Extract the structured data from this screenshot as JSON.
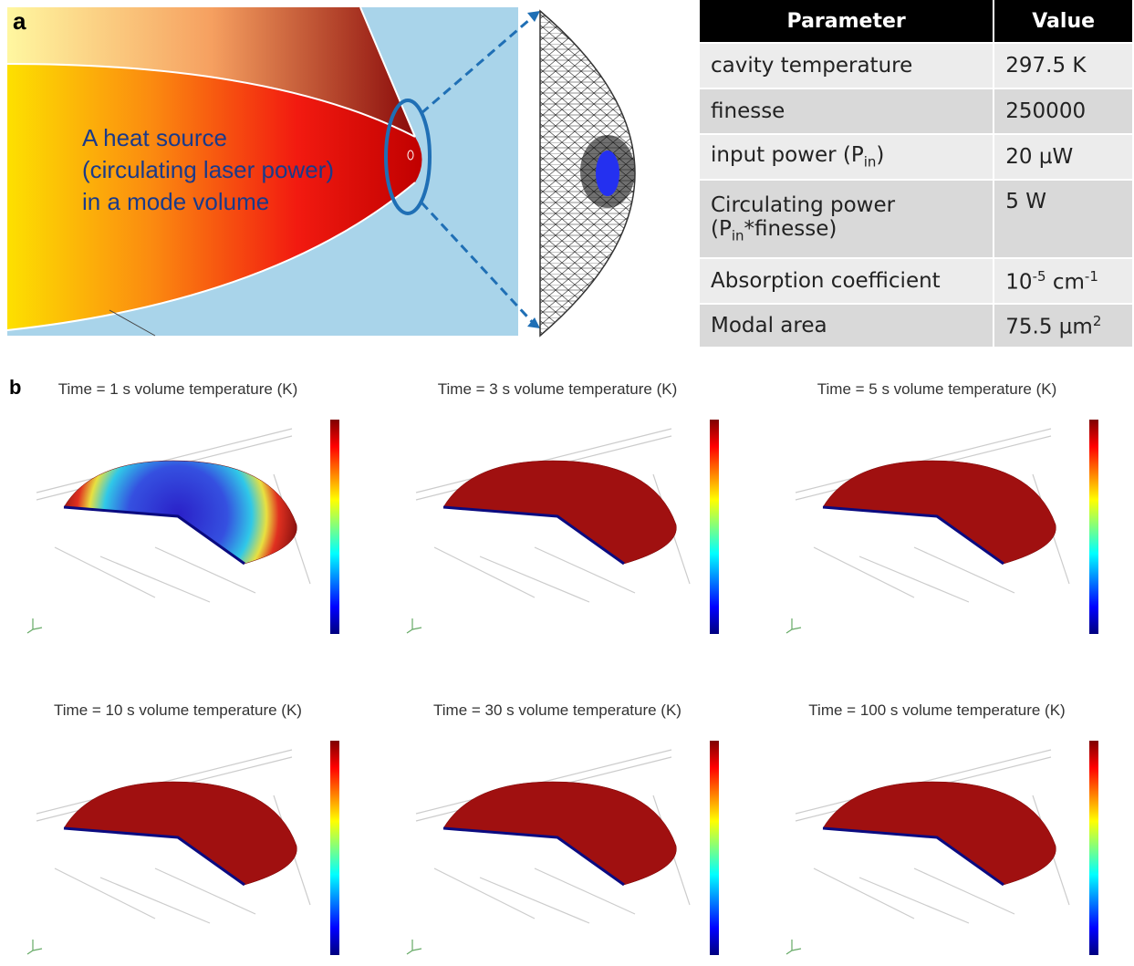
{
  "panel_a": {
    "label": "a",
    "annotation": [
      "A heat source",
      "(circulating laser power)",
      "in a mode volume"
    ]
  },
  "table": {
    "header": [
      "Parameter",
      "Value"
    ],
    "rows": [
      [
        "cavity temperature",
        "297.5 K"
      ],
      [
        "finesse",
        "250000"
      ],
      [
        [
          "input power (P",
          "in",
          ")"
        ],
        "20 µW"
      ],
      [
        [
          "Circulating power",
          "(P",
          "in",
          "*finesse)"
        ],
        "5 W"
      ],
      [
        "Absorption coefficient",
        [
          "10",
          "-5",
          " cm",
          "-1"
        ]
      ],
      [
        "Modal area",
        [
          "75.5 µm",
          "2"
        ]
      ]
    ]
  },
  "panel_b": {
    "label": "b",
    "plots": [
      {
        "title": "Time = 1 s volume temperature (K)"
      },
      {
        "title": "Time = 3 s volume temperature (K)"
      },
      {
        "title": "Time = 5 s volume temperature (K)"
      },
      {
        "title": "Time = 10 s volume temperature (K)"
      },
      {
        "title": "Time = 30 s volume temperature (K)"
      },
      {
        "title": "Time = 100 s volume temperature (K)"
      }
    ]
  }
}
